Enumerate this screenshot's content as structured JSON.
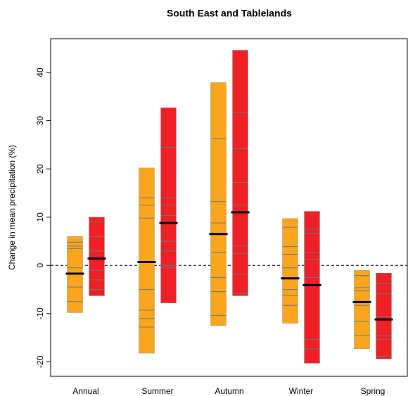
{
  "chart_data": {
    "type": "range-bar",
    "title": "South East and Tablelands",
    "y_label": "Change in mean precipitation (%)",
    "categories": [
      "Annual",
      "Summer",
      "Autumn",
      "Winter",
      "Spring"
    ],
    "ylim": [
      -23,
      47
    ],
    "yticks": [
      -20,
      -10,
      0,
      10,
      20,
      30,
      40
    ],
    "reference_line": 0,
    "series": [
      {
        "color": "#f9a51d",
        "min": [
          -9.8,
          -18.2,
          -12.5,
          -12,
          -17.3
        ],
        "max": [
          6,
          20.2,
          37.9,
          9.7,
          -1
        ],
        "median": [
          -1.7,
          0.7,
          6.5,
          -2.7,
          -7.6
        ],
        "models": [
          [
            4.8,
            4,
            3.5,
            -0.5,
            -4.5,
            -7.5
          ],
          [
            14,
            12.5,
            9.8,
            -5,
            -9.3,
            -11,
            -12.8
          ],
          [
            26.3,
            13.2,
            8.8,
            2.7,
            -2.5,
            -5.4,
            -10.4
          ],
          [
            7.9,
            3.9,
            2.3,
            -0.5,
            -5,
            -6.2,
            -8.3
          ],
          [
            -2.1,
            -4.6,
            -5.3,
            -8.3,
            -11.6,
            -14.5
          ]
        ]
      },
      {
        "color": "#ee1f25",
        "min": [
          -6.3,
          -7.8,
          -6.3,
          -20.3,
          -19.4
        ],
        "max": [
          10,
          32.7,
          44.6,
          11.2,
          -1.6
        ],
        "median": [
          1.4,
          8.8,
          11,
          -4.1,
          -11.2
        ],
        "models": [
          [
            9,
            6,
            3,
            -1,
            -3,
            -5
          ],
          [
            24.5,
            14,
            12.5,
            10.3,
            5,
            3,
            0,
            -0.5
          ],
          [
            31.7,
            24.2,
            17.2,
            12.5,
            4,
            2.5,
            -1.8,
            -5.8
          ],
          [
            7.5,
            6.6,
            2.7,
            1.3,
            -2.5,
            -15.3,
            -17.3
          ],
          [
            -3.8,
            -5.9,
            -10.6,
            -14.6,
            -15.3,
            -18.8
          ]
        ]
      }
    ]
  }
}
